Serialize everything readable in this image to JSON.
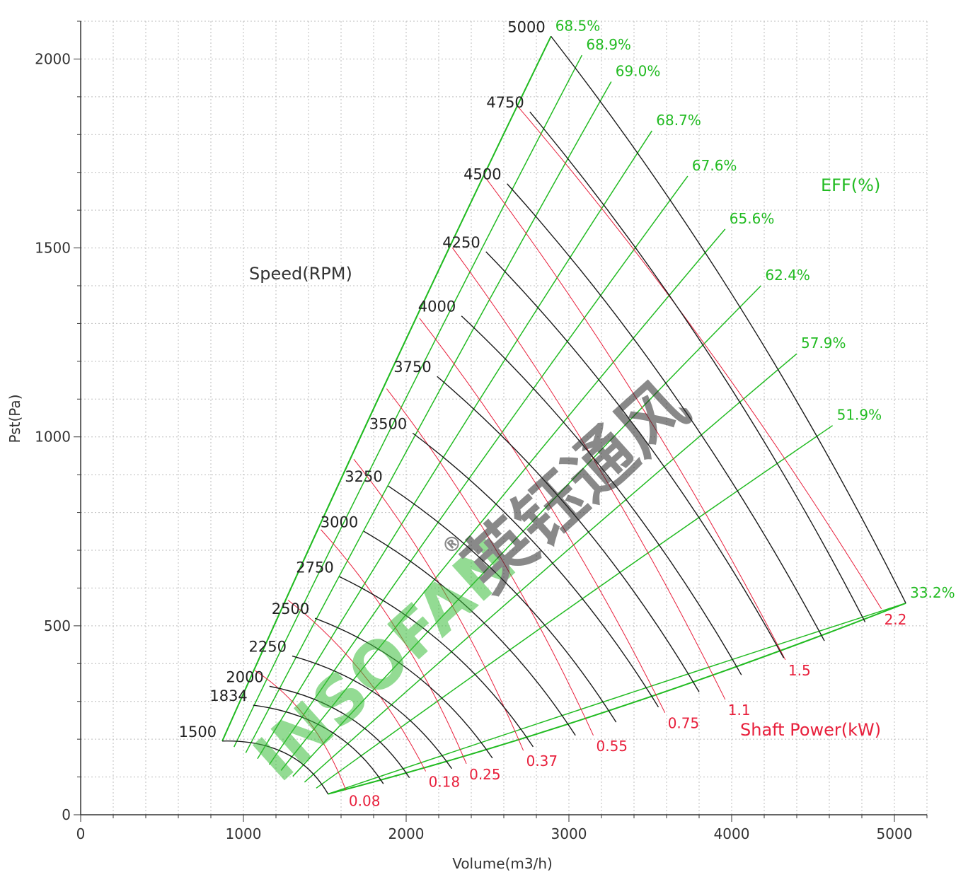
{
  "chart_data": {
    "type": "line",
    "title": "",
    "xlabel": "Volume(m3/h)",
    "ylabel": "Pst(Pa)",
    "xlim": [
      0,
      5200
    ],
    "ylim": [
      0,
      2100
    ],
    "x_ticks": [
      "0",
      "1000",
      "2000",
      "3000",
      "4000",
      "5000"
    ],
    "y_ticks": [
      "0",
      "500",
      "1000",
      "1500",
      "2000"
    ],
    "grid": true,
    "speed_label": "Speed(RPM)",
    "eff_label": "EFF(%)",
    "power_label": "Shaft Power(kW)",
    "speed_curves": [
      {
        "rpm": "1500",
        "points": [
          [
            870,
            195
          ],
          [
            1520,
            55
          ]
        ]
      },
      {
        "rpm": "1834",
        "points": [
          [
            1060,
            290
          ],
          [
            1860,
            82
          ]
        ]
      },
      {
        "rpm": "2000",
        "points": [
          [
            1160,
            340
          ],
          [
            2020,
            98
          ]
        ]
      },
      {
        "rpm": "2250",
        "points": [
          [
            1300,
            420
          ],
          [
            2280,
            122
          ]
        ]
      },
      {
        "rpm": "2500",
        "points": [
          [
            1440,
            520
          ],
          [
            2530,
            150
          ]
        ]
      },
      {
        "rpm": "2750",
        "points": [
          [
            1590,
            630
          ],
          [
            2780,
            180
          ]
        ]
      },
      {
        "rpm": "3000",
        "points": [
          [
            1740,
            750
          ],
          [
            3040,
            210
          ]
        ]
      },
      {
        "rpm": "3250",
        "points": [
          [
            1890,
            870
          ],
          [
            3290,
            245
          ]
        ]
      },
      {
        "rpm": "3500",
        "points": [
          [
            2040,
            1010
          ],
          [
            3550,
            285
          ]
        ]
      },
      {
        "rpm": "3750",
        "points": [
          [
            2190,
            1160
          ],
          [
            3800,
            325
          ]
        ]
      },
      {
        "rpm": "4000",
        "points": [
          [
            2340,
            1320
          ],
          [
            4060,
            370
          ]
        ]
      },
      {
        "rpm": "4250",
        "points": [
          [
            2490,
            1490
          ],
          [
            4320,
            415
          ]
        ]
      },
      {
        "rpm": "4500",
        "points": [
          [
            2620,
            1670
          ],
          [
            4570,
            460
          ]
        ]
      },
      {
        "rpm": "4750",
        "points": [
          [
            2760,
            1860
          ],
          [
            4820,
            510
          ]
        ]
      },
      {
        "rpm": "5000",
        "points": [
          [
            2890,
            2060
          ],
          [
            5070,
            560
          ]
        ]
      }
    ],
    "efficiency_lines": [
      {
        "label": "68.5%",
        "top": [
          2890,
          2060
        ]
      },
      {
        "label": "68.9%",
        "top": [
          3080,
          2010
        ]
      },
      {
        "label": "69.0%",
        "top": [
          3260,
          1940
        ]
      },
      {
        "label": "68.7%",
        "top": [
          3510,
          1810
        ]
      },
      {
        "label": "67.6%",
        "top": [
          3730,
          1690
        ]
      },
      {
        "label": "65.6%",
        "top": [
          3960,
          1550
        ]
      },
      {
        "label": "62.4%",
        "top": [
          4180,
          1400
        ]
      },
      {
        "label": "57.9%",
        "top": [
          4400,
          1220
        ]
      },
      {
        "label": "51.9%",
        "top": [
          4620,
          1030
        ]
      },
      {
        "label": "33.2%",
        "top": [
          5070,
          560
        ]
      }
    ],
    "power_curves": [
      {
        "label": "0.08",
        "end": [
          1630,
          65
        ]
      },
      {
        "label": "0.18",
        "end": [
          2120,
          115
        ]
      },
      {
        "label": "0.25",
        "end": [
          2370,
          135
        ]
      },
      {
        "label": "0.37",
        "end": [
          2720,
          170
        ]
      },
      {
        "label": "0.55",
        "end": [
          3150,
          210
        ]
      },
      {
        "label": "0.75",
        "end": [
          3590,
          270
        ]
      },
      {
        "label": "1.1",
        "end": [
          3960,
          305
        ]
      },
      {
        "label": "1.5",
        "end": [
          4330,
          410
        ]
      },
      {
        "label": "2.2",
        "end": [
          4920,
          545
        ]
      }
    ],
    "colors": {
      "speed": "#1a1a1a",
      "efficiency": "#22bb22",
      "power": "#e8203c",
      "grid": "#bdbdbd"
    }
  },
  "watermark": {
    "brand": "INSOFAN",
    "cn": "英钰通风",
    "mark": "®"
  }
}
